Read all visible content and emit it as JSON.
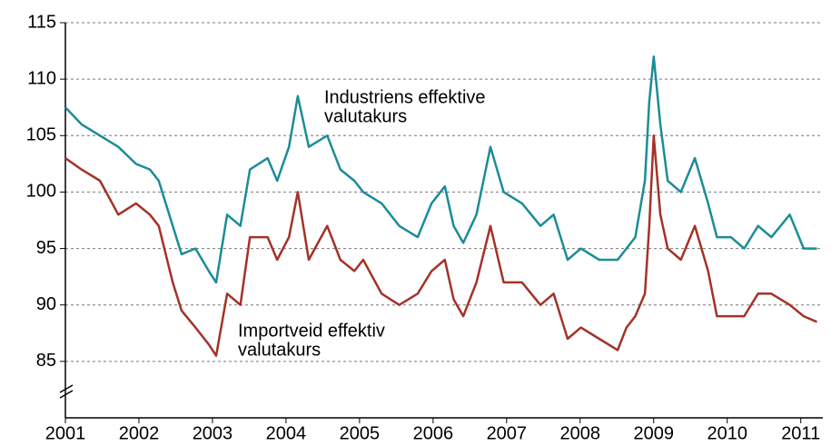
{
  "chart_data": {
    "type": "line",
    "x": [
      2001.0,
      2001.22,
      2001.47,
      2001.72,
      2001.96,
      2002.15,
      2002.27,
      2002.46,
      2002.58,
      2002.77,
      2002.95,
      2003.05,
      2003.2,
      2003.38,
      2003.51,
      2003.75,
      2003.88,
      2004.04,
      2004.16,
      2004.31,
      2004.56,
      2004.74,
      2004.93,
      2005.05,
      2005.3,
      2005.54,
      2005.79,
      2005.98,
      2006.16,
      2006.28,
      2006.41,
      2006.59,
      2006.78,
      2006.96,
      2007.21,
      2007.46,
      2007.64,
      2007.83,
      2008.01,
      2008.26,
      2008.51,
      2008.63,
      2008.75,
      2008.88,
      2008.94,
      2009.0,
      2009.09,
      2009.19,
      2009.37,
      2009.56,
      2009.74,
      2009.86,
      2010.05,
      2010.23,
      2010.42,
      2010.6,
      2010.85,
      2011.04,
      2011.22
    ],
    "series": [
      {
        "name": "Industriens effektive valutakurs",
        "color": "#1b8c98",
        "values": [
          107.5,
          106,
          105,
          104,
          102.5,
          102,
          101,
          97,
          94.5,
          95,
          93,
          92,
          98,
          97,
          102,
          103,
          101,
          104,
          108.5,
          104,
          105,
          102,
          101,
          100,
          99,
          97,
          96,
          99,
          100.5,
          97,
          95.5,
          98,
          104,
          100,
          99,
          97,
          98,
          94,
          95,
          94,
          94,
          95,
          96,
          101,
          108,
          112,
          106,
          101,
          100,
          103,
          99,
          96,
          96,
          95,
          97,
          96,
          98,
          95,
          95
        ]
      },
      {
        "name": "Importveid effektiv valutakurs",
        "color": "#a33228",
        "values": [
          103,
          102,
          101,
          98,
          99,
          98,
          97,
          92,
          89.5,
          88,
          86.5,
          85.5,
          91,
          90,
          96,
          96,
          94,
          96,
          100,
          94,
          97,
          94,
          93,
          94,
          91,
          90,
          91,
          93,
          94,
          90.5,
          89,
          92,
          97,
          92,
          92,
          90,
          91,
          87,
          88,
          87,
          86,
          88,
          89,
          91,
          97,
          105,
          98,
          95,
          94,
          97,
          93,
          89,
          89,
          89,
          91,
          91,
          90,
          89,
          88.5
        ]
      }
    ],
    "annotations": [
      {
        "lines": [
          "Industriens effektive",
          "valutakurs"
        ]
      },
      {
        "lines": [
          "Importveid effektiv",
          "valutakurs"
        ]
      }
    ],
    "xlim": [
      2001,
      2011.3
    ],
    "xticks": [
      2001,
      2002,
      2003,
      2004,
      2005,
      2006,
      2007,
      2008,
      2009,
      2010,
      2011
    ],
    "ylim": [
      80,
      115
    ],
    "yticks": [
      85,
      90,
      95,
      100,
      105,
      110,
      115
    ],
    "grid": true
  }
}
